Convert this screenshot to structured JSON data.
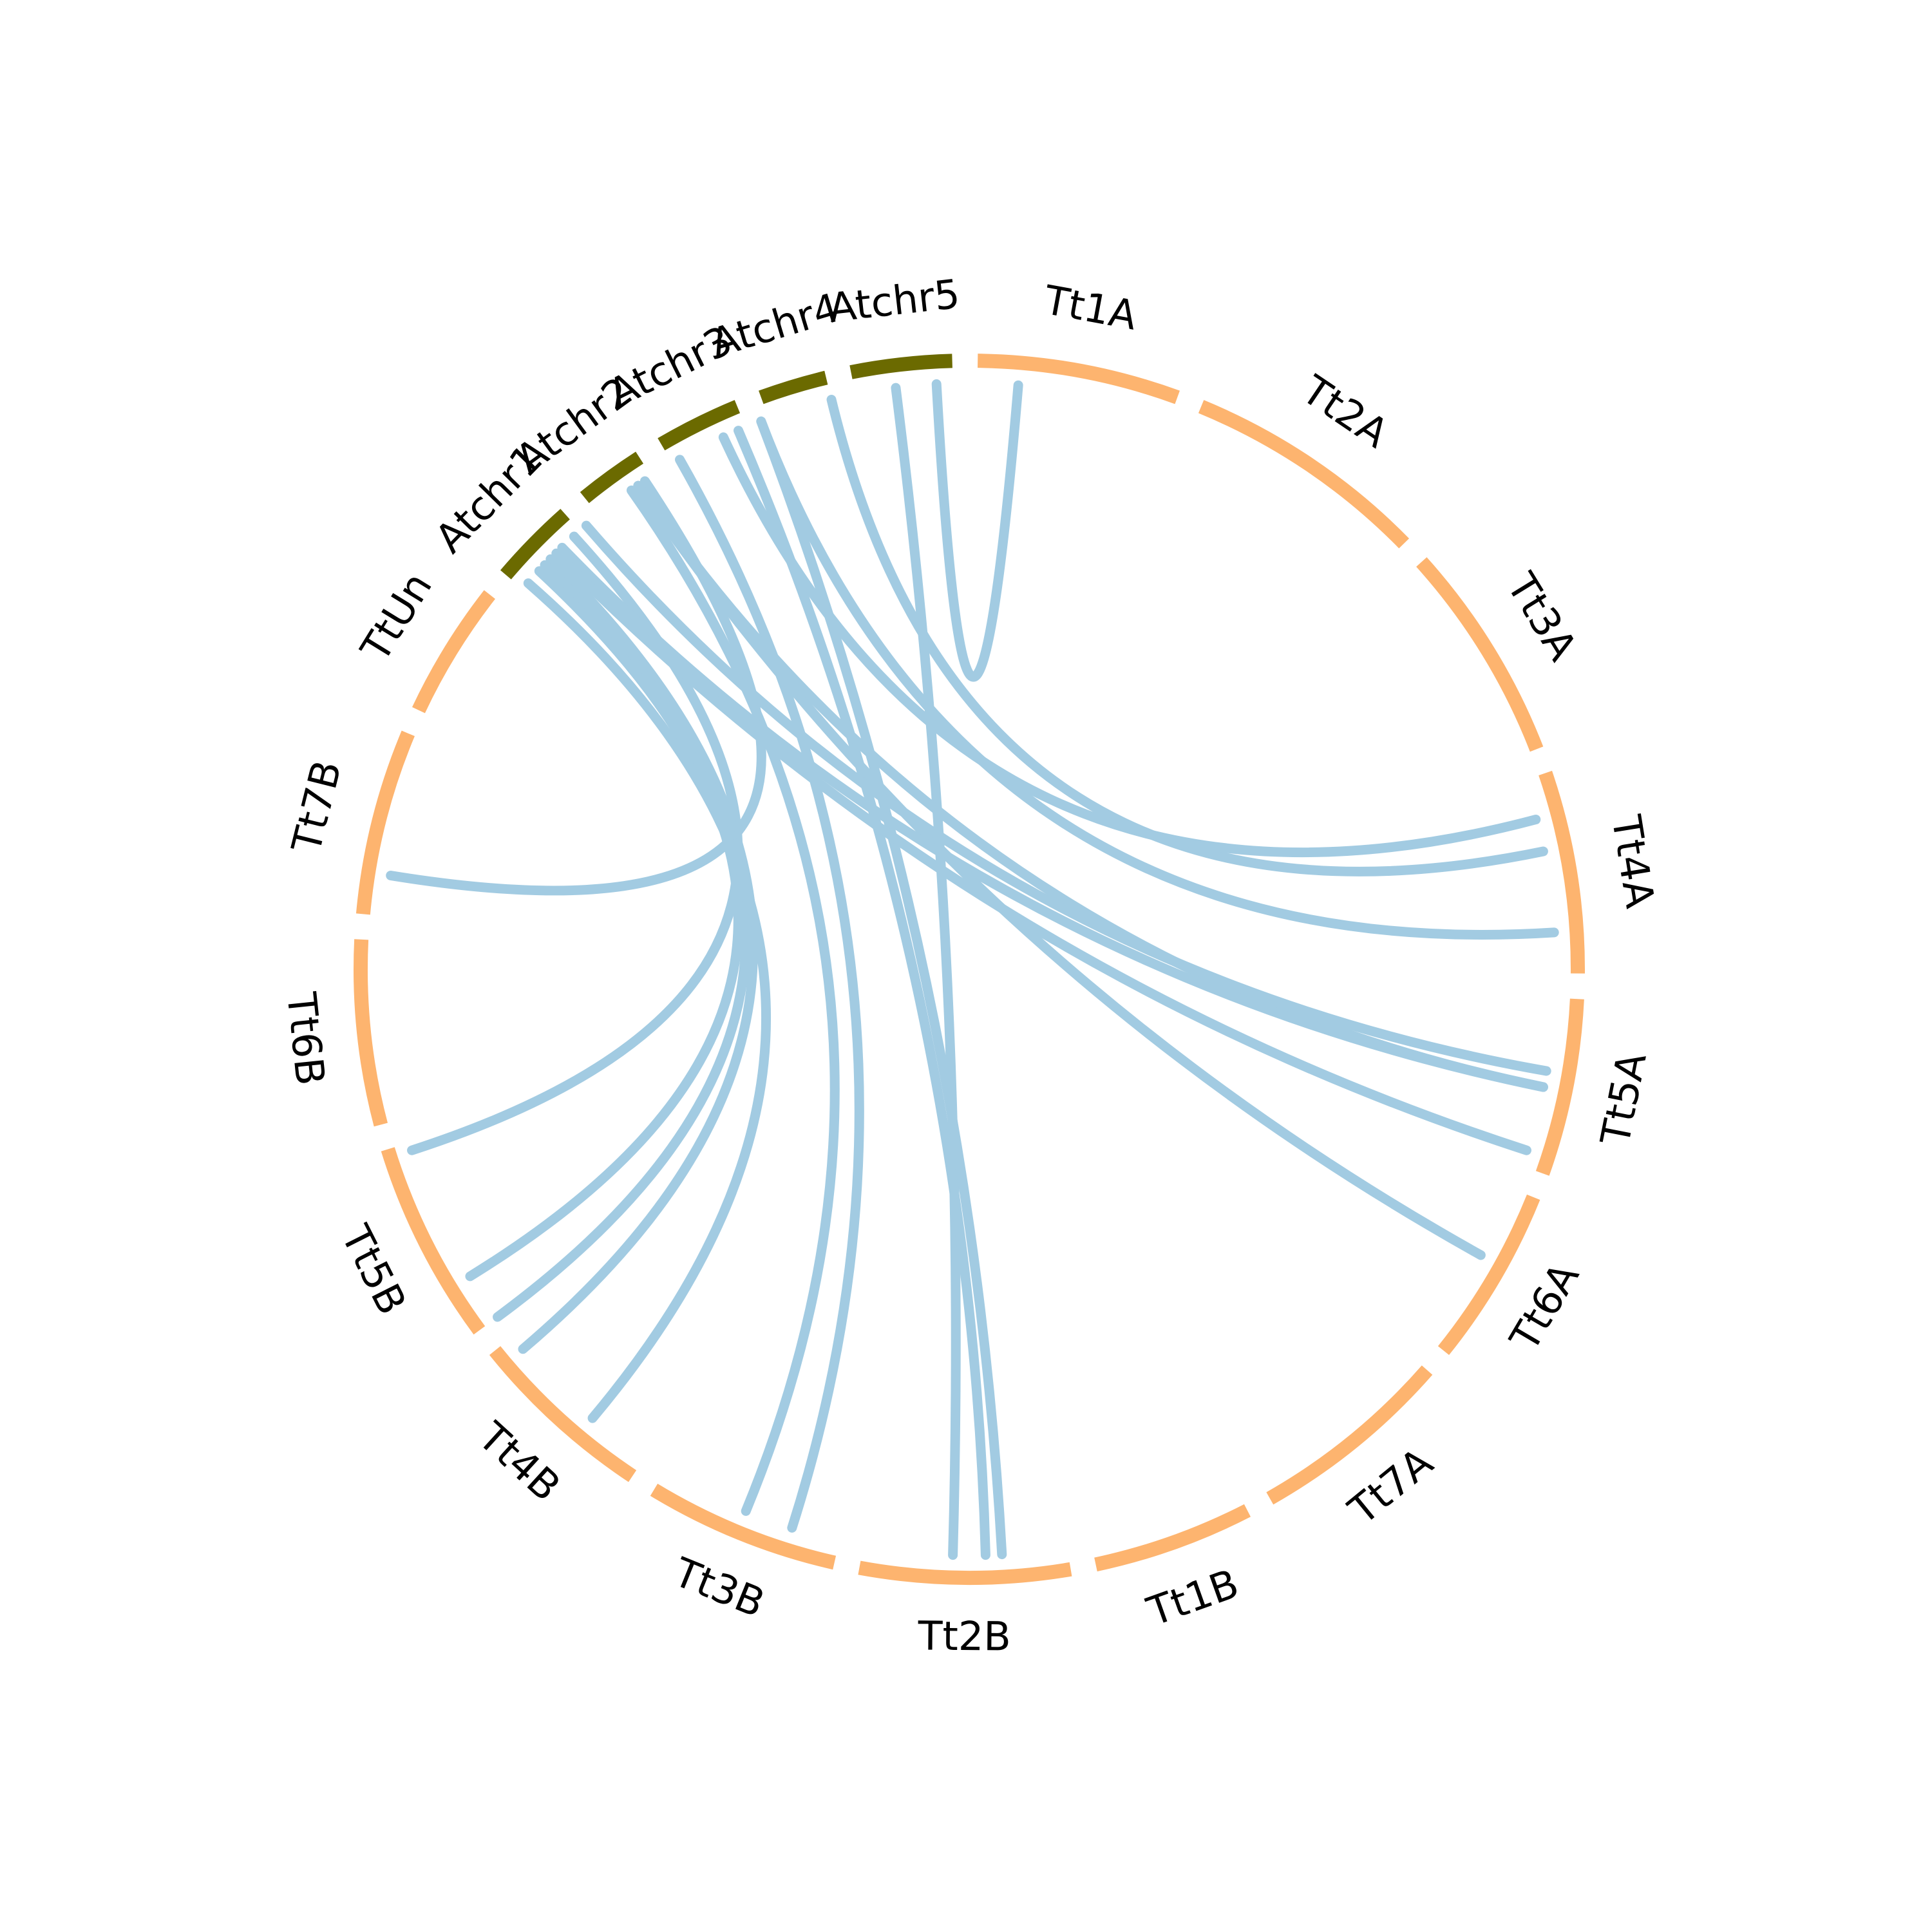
{
  "colors": {
    "background": "#ffffff",
    "tt_arc": "#FDB46F",
    "at_arc": "#6B6A00",
    "link": "#A2CBE2",
    "label": "#000000"
  },
  "segments": [
    {
      "id": "Tt1A",
      "label": "Tt1A",
      "start": 1,
      "end": 25,
      "group": "tt"
    },
    {
      "id": "Tt2A",
      "label": "Tt2A",
      "start": 28,
      "end": 57,
      "group": "tt"
    },
    {
      "id": "Tt3A",
      "label": "Tt3A",
      "start": 60,
      "end": 86,
      "group": "tt"
    },
    {
      "id": "Tt4A",
      "label": "Tt4A",
      "start": 89,
      "end": 113,
      "group": "tt"
    },
    {
      "id": "Tt5A",
      "label": "Tt5A",
      "start": 116,
      "end": 137,
      "group": "tt"
    },
    {
      "id": "Tt6A",
      "label": "Tt6A",
      "start": 140,
      "end": 161,
      "group": "tt"
    },
    {
      "id": "Tt7A",
      "label": "Tt7A",
      "start": 164,
      "end": 188,
      "group": "tt"
    },
    {
      "id": "Tt1B",
      "label": "Tt1B",
      "start": 191,
      "end": 210,
      "group": "tt"
    },
    {
      "id": "Tt2B",
      "label": "Tt2B",
      "start": 213,
      "end": 238,
      "group": "tt"
    },
    {
      "id": "Tt3B",
      "label": "Tt3B",
      "start": 241,
      "end": 264,
      "group": "tt"
    },
    {
      "id": "Tt4B",
      "label": "Tt4B",
      "start": 267,
      "end": 289,
      "group": "tt"
    },
    {
      "id": "Tt5B",
      "label": "Tt5B",
      "start": 292,
      "end": 316,
      "group": "tt"
    },
    {
      "id": "Tt6B",
      "label": "Tt6B",
      "start": 319,
      "end": 341,
      "group": "tt"
    },
    {
      "id": "Tt7B",
      "label": "Tt7B",
      "start": 344,
      "end": 366,
      "group": "tt"
    },
    {
      "id": "TtUn",
      "label": "TtUn",
      "start": 369,
      "end": 385,
      "group": "tt"
    },
    {
      "id": "Atchr1",
      "label": "Atchr1",
      "start": 388,
      "end": 398,
      "group": "at"
    },
    {
      "id": "Atchr2",
      "label": "Atchr2",
      "start": 401,
      "end": 409,
      "group": "at"
    },
    {
      "id": "Atchr3",
      "label": "Atchr3",
      "start": 412,
      "end": 422,
      "group": "at"
    },
    {
      "id": "Atchr4",
      "label": "Atchr4",
      "start": 425,
      "end": 433,
      "group": "at"
    },
    {
      "id": "Atchr5",
      "label": "Atchr5",
      "start": 436,
      "end": 448,
      "group": "at"
    }
  ],
  "links": [
    {
      "from": 446,
      "to": 6
    },
    {
      "from": 441,
      "to": 227
    },
    {
      "from": 433,
      "to": 98
    },
    {
      "from": 424,
      "to": 108
    },
    {
      "from": 424,
      "to": 221
    },
    {
      "from": 421,
      "to": 223
    },
    {
      "from": 419,
      "to": 94
    },
    {
      "from": 413,
      "to": 247
    },
    {
      "from": 408,
      "to": 349
    },
    {
      "from": 407,
      "to": 149
    },
    {
      "from": 407,
      "to": 127
    },
    {
      "from": 406,
      "to": 253
    },
    {
      "from": 399,
      "to": 125
    },
    {
      "from": 397,
      "to": 315
    },
    {
      "from": 395,
      "to": 127
    },
    {
      "from": 394,
      "to": 135
    },
    {
      "from": 393,
      "to": 287
    },
    {
      "from": 392,
      "to": 292
    },
    {
      "from": 391,
      "to": 298
    },
    {
      "from": 389,
      "to": 275
    }
  ]
}
